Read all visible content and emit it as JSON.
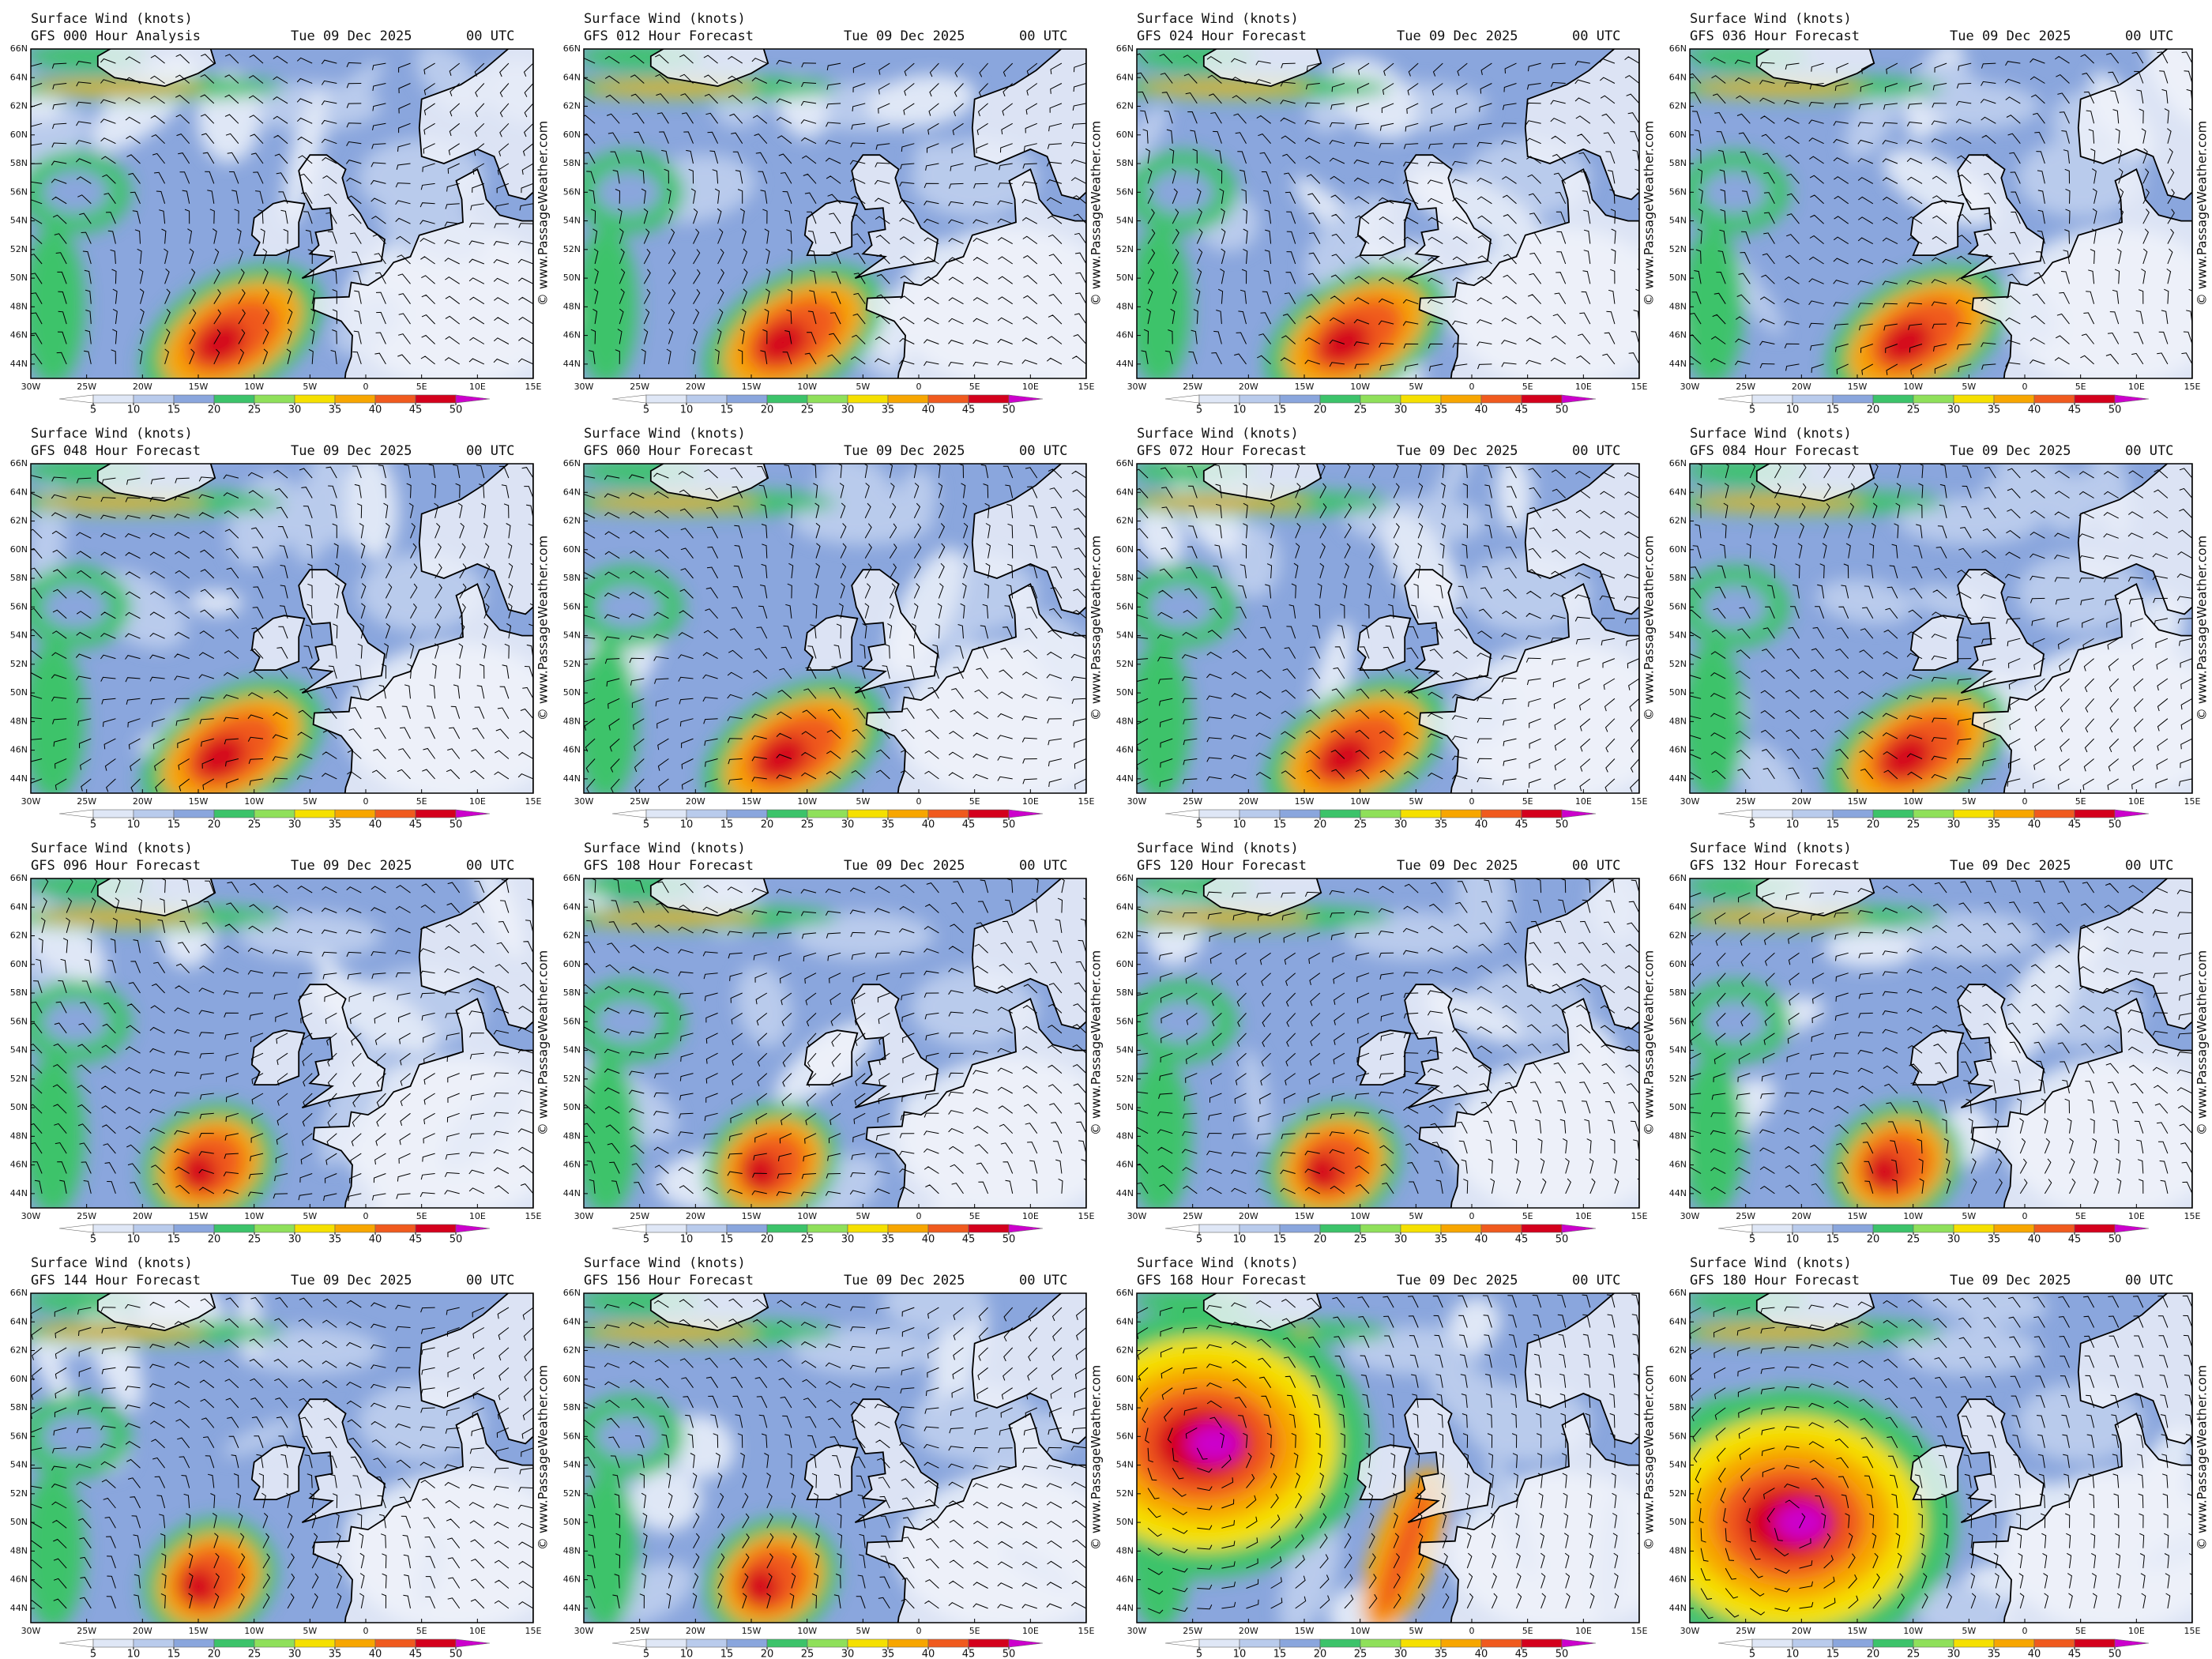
{
  "panels": [
    {
      "title": "Surface Wind (knots)",
      "run": "GFS 000 Hour Analysis",
      "date": "Tue 09 Dec 2025",
      "time": "00 UTC"
    },
    {
      "title": "Surface Wind (knots)",
      "run": "GFS 012 Hour Forecast",
      "date": "Tue 09 Dec 2025",
      "time": "00 UTC"
    },
    {
      "title": "Surface Wind (knots)",
      "run": "GFS 024 Hour Forecast",
      "date": "Tue 09 Dec 2025",
      "time": "00 UTC"
    },
    {
      "title": "Surface Wind (knots)",
      "run": "GFS 036 Hour Forecast",
      "date": "Tue 09 Dec 2025",
      "time": "00 UTC"
    },
    {
      "title": "Surface Wind (knots)",
      "run": "GFS 048 Hour Forecast",
      "date": "Tue 09 Dec 2025",
      "time": "00 UTC"
    },
    {
      "title": "Surface Wind (knots)",
      "run": "GFS 060 Hour Forecast",
      "date": "Tue 09 Dec 2025",
      "time": "00 UTC"
    },
    {
      "title": "Surface Wind (knots)",
      "run": "GFS 072 Hour Forecast",
      "date": "Tue 09 Dec 2025",
      "time": "00 UTC"
    },
    {
      "title": "Surface Wind (knots)",
      "run": "GFS 084 Hour Forecast",
      "date": "Tue 09 Dec 2025",
      "time": "00 UTC"
    },
    {
      "title": "Surface Wind (knots)",
      "run": "GFS 096 Hour Forecast",
      "date": "Tue 09 Dec 2025",
      "time": "00 UTC"
    },
    {
      "title": "Surface Wind (knots)",
      "run": "GFS 108 Hour Forecast",
      "date": "Tue 09 Dec 2025",
      "time": "00 UTC"
    },
    {
      "title": "Surface Wind (knots)",
      "run": "GFS 120 Hour Forecast",
      "date": "Tue 09 Dec 2025",
      "time": "00 UTC"
    },
    {
      "title": "Surface Wind (knots)",
      "run": "GFS 132 Hour Forecast",
      "date": "Tue 09 Dec 2025",
      "time": "00 UTC"
    },
    {
      "title": "Surface Wind (knots)",
      "run": "GFS 144 Hour Forecast",
      "date": "Tue 09 Dec 2025",
      "time": "00 UTC"
    },
    {
      "title": "Surface Wind (knots)",
      "run": "GFS 156 Hour Forecast",
      "date": "Tue 09 Dec 2025",
      "time": "00 UTC"
    },
    {
      "title": "Surface Wind (knots)",
      "run": "GFS 168 Hour Forecast",
      "date": "Tue 09 Dec 2025",
      "time": "00 UTC"
    },
    {
      "title": "Surface Wind (knots)",
      "run": "GFS 180 Hour Forecast",
      "date": "Tue 09 Dec 2025",
      "time": "00 UTC"
    }
  ],
  "map_axes": {
    "xlim": [
      -30,
      15
    ],
    "ylim": [
      43,
      66
    ],
    "xticks": [
      {
        "value": -30,
        "label": "30W"
      },
      {
        "value": -25,
        "label": "25W"
      },
      {
        "value": -20,
        "label": "20W"
      },
      {
        "value": -15,
        "label": "15W"
      },
      {
        "value": -10,
        "label": "10W"
      },
      {
        "value": -5,
        "label": "5W"
      },
      0,
      {
        "value": 5,
        "label": "5E"
      },
      {
        "value": 10,
        "label": "10E"
      },
      {
        "value": 15,
        "label": "15E"
      }
    ],
    "yticks": [
      {
        "value": 44,
        "label": "44N"
      },
      {
        "value": 46,
        "label": "46N"
      },
      {
        "value": 48,
        "label": "48N"
      },
      {
        "value": 50,
        "label": "50N"
      },
      {
        "value": 52,
        "label": "52N"
      },
      {
        "value": 54,
        "label": "54N"
      },
      {
        "value": 56,
        "label": "56N"
      },
      {
        "value": 58,
        "label": "58N"
      },
      {
        "value": 60,
        "label": "60N"
      },
      {
        "value": 62,
        "label": "62N"
      },
      {
        "value": 64,
        "label": "64N"
      },
      {
        "value": 66,
        "label": "66N"
      }
    ]
  },
  "colorbar": {
    "ticks": [
      5,
      10,
      15,
      20,
      25,
      30,
      35,
      40,
      45,
      50
    ],
    "colors": [
      "#ffffff",
      "#dfe7f6",
      "#b9cbec",
      "#8aa6dd",
      "#3cc36a",
      "#8fe05a",
      "#f5e000",
      "#f7a600",
      "#f05a1e",
      "#d4001c",
      "#cc00cc"
    ]
  },
  "watermark": "© www.PassageWeather.com"
}
